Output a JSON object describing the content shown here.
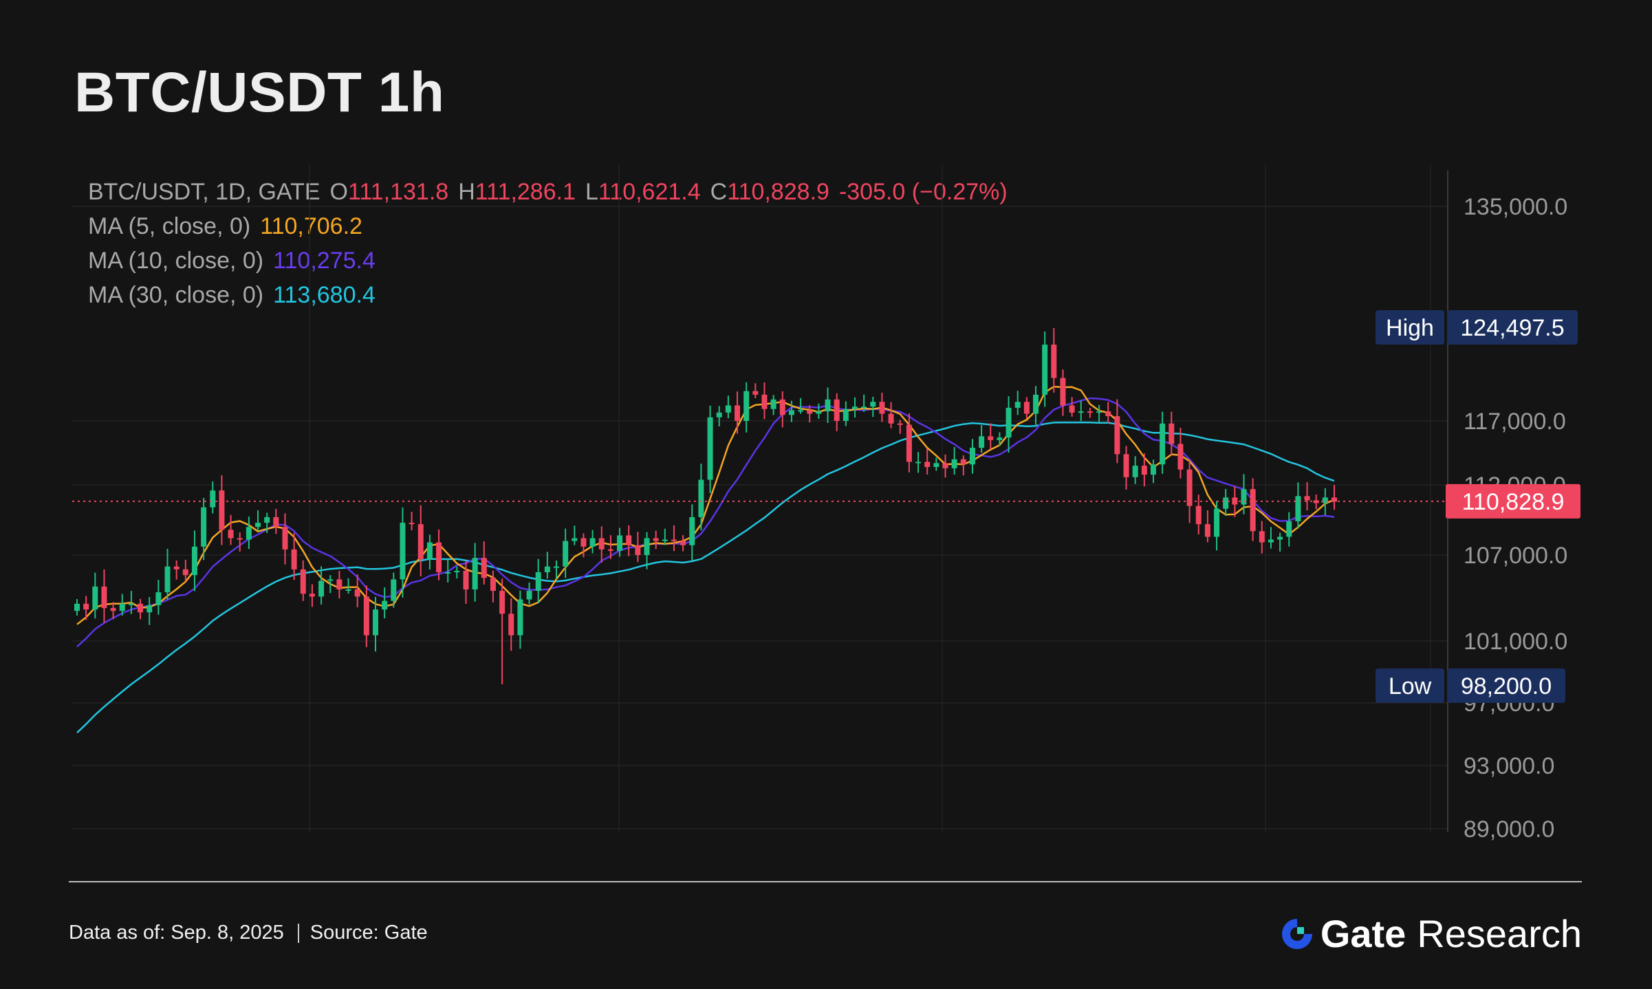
{
  "title": "BTC/USDT 1h",
  "legend": {
    "symbol": "BTC/USDT, 1D, GATE",
    "o_label": "O",
    "o_value": "111,131.8",
    "h_label": "H",
    "h_value": "111,286.1",
    "l_label": "L",
    "l_value": "110,621.4",
    "c_label": "C",
    "c_value": "110,828.9",
    "change": "-305.0 (−0.27%)",
    "ma5_label": "MA (5, close, 0)",
    "ma5_value": "110,706.2",
    "ma10_label": "MA (10, close, 0)",
    "ma10_value": "110,275.4",
    "ma30_label": "MA (30, close, 0)",
    "ma30_value": "113,680.4"
  },
  "footer": {
    "date": "Data as of: Sep. 8, 2025",
    "source": "Source: Gate",
    "brand_gate": "Gate",
    "brand_research": "Research"
  },
  "colors": {
    "up": "#1dbf82",
    "down": "#f0455f",
    "ma5": "#f5a623",
    "ma10": "#5b34e6",
    "ma30": "#22c6e0",
    "tag_bg": "#1b2f5e",
    "last_bg": "#f0455f"
  },
  "chart_data": {
    "type": "candlestick",
    "title": "BTC/USDT 1h",
    "symbol": "BTC/USDT, 1D, GATE",
    "y_ticks": [
      {
        "value": 135000,
        "label": "135,000.0"
      },
      {
        "value": 117000,
        "label": "117,000.0"
      },
      {
        "value": 112000,
        "label": "112,000.0"
      },
      {
        "value": 107000,
        "label": "107,000.0"
      },
      {
        "value": 101000,
        "label": "101,000.0"
      },
      {
        "value": 97000,
        "label": "97,000.0"
      },
      {
        "value": 93000,
        "label": "93,000.0"
      },
      {
        "value": 89000,
        "label": "89,000.0"
      }
    ],
    "high_marker": {
      "label": "High",
      "value": 124497.5,
      "text": "124,497.5"
    },
    "low_marker": {
      "label": "Low",
      "value": 98200.0,
      "text": "98,200.0"
    },
    "last_price": {
      "value": 110828.9,
      "text": "110,828.9"
    },
    "closes": [
      103600,
      103200,
      104800,
      103300,
      103100,
      103600,
      103600,
      103000,
      103500,
      104400,
      106200,
      106000,
      105600,
      107600,
      110400,
      111600,
      108800,
      108200,
      108100,
      109000,
      109300,
      109700,
      109000,
      107400,
      106000,
      104300,
      104100,
      105200,
      105300,
      104600,
      104600,
      104100,
      101400,
      103200,
      103800,
      105300,
      109300,
      109200,
      106700,
      107900,
      105800,
      105800,
      105900,
      104600,
      106800,
      105400,
      104500,
      102900,
      101400,
      103900,
      104500,
      105800,
      106200,
      106200,
      108000,
      108200,
      107600,
      108200,
      107400,
      107300,
      108400,
      107700,
      107000,
      108200,
      108000,
      108100,
      108000,
      107700,
      109700,
      112400,
      117300,
      117700,
      118300,
      117000,
      119500,
      119200,
      118000,
      118800,
      117500,
      117900,
      117900,
      117600,
      117800,
      118800,
      117000,
      118000,
      118200,
      118200,
      118600,
      117600,
      116800,
      116700,
      113800,
      113800,
      113400,
      113700,
      113300,
      114000,
      113600,
      114900,
      115800,
      115500,
      115700,
      118100,
      118600,
      117600,
      119200,
      123400,
      120600,
      118300,
      117700,
      117800,
      117700,
      117800,
      117400,
      114400,
      112600,
      113500,
      112800,
      113600,
      116800,
      115200,
      113200,
      110500,
      109200,
      108300,
      110300,
      111100,
      110600,
      111700,
      108700,
      107900,
      108100,
      108300,
      109400,
      111200,
      110900,
      110700,
      111100,
      110800
    ]
  }
}
